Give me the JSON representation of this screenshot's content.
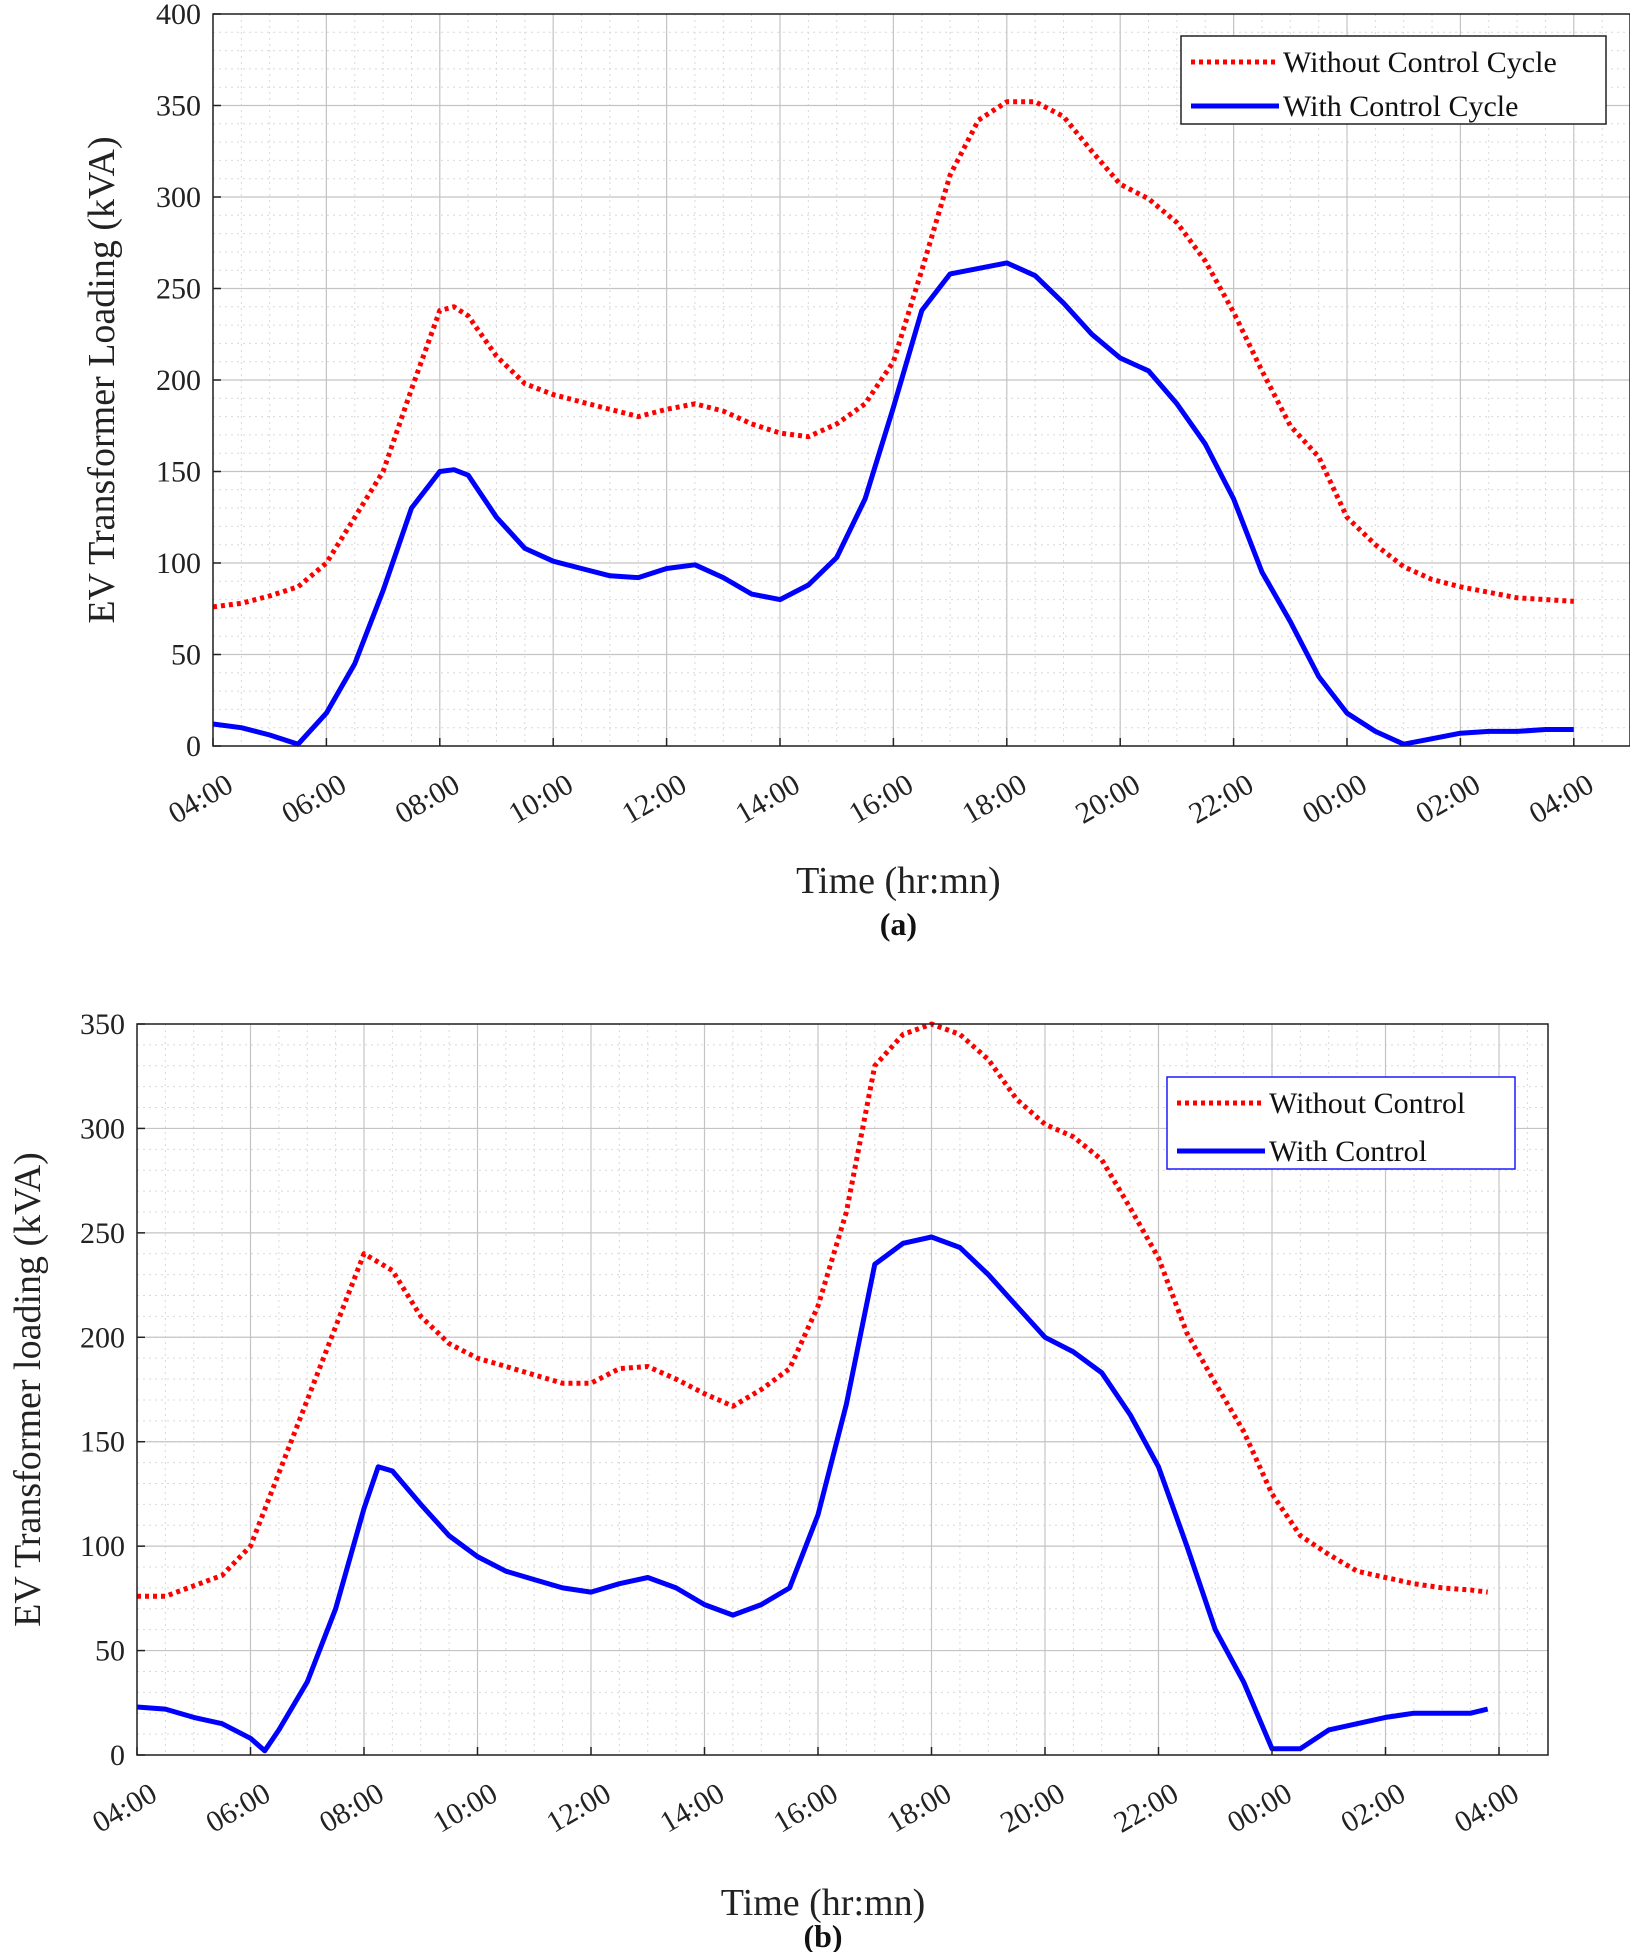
{
  "chart_data": [
    {
      "type": "line",
      "caption": "(a)",
      "xlabel": "Time (hr:mn)",
      "ylabel": "EV Transformer Loading (kVA)",
      "xlim": [
        0,
        24
      ],
      "ylim": [
        0,
        400
      ],
      "y_ticks": [
        0,
        50,
        100,
        150,
        200,
        250,
        300,
        350,
        400
      ],
      "x_tick_labels": [
        "04:00",
        "06:00",
        "08:00",
        "10:00",
        "12:00",
        "14:00",
        "16:00",
        "18:00",
        "20:00",
        "22:00",
        "00:00",
        "02:00",
        "04:00"
      ],
      "grid": true,
      "legend_position": "top-right",
      "series": [
        {
          "name": "Without Control Cycle",
          "color": "#ff0000",
          "style": "dotted",
          "x": [
            0,
            0.5,
            1,
            1.5,
            2,
            2.5,
            3,
            3.5,
            4,
            4.25,
            4.5,
            5,
            5.5,
            6,
            6.5,
            7,
            7.5,
            8,
            8.5,
            9,
            9.5,
            10,
            10.5,
            11,
            11.5,
            12,
            12.5,
            13,
            13.5,
            14,
            14.5,
            15,
            15.5,
            16,
            16.5,
            17,
            17.5,
            18,
            18.5,
            19,
            19.5,
            20,
            20.5,
            21,
            21.5,
            22,
            22.5,
            23,
            23.5,
            24
          ],
          "values": [
            76,
            78,
            82,
            87,
            100,
            125,
            150,
            195,
            238,
            240,
            235,
            213,
            198,
            192,
            188,
            184,
            180,
            184,
            187,
            183,
            176,
            171,
            169,
            176,
            187,
            210,
            260,
            312,
            342,
            352,
            352,
            344,
            325,
            307,
            299,
            286,
            265,
            237,
            205,
            175,
            158,
            125,
            110,
            98,
            91,
            87,
            84,
            81,
            80,
            79
          ]
        },
        {
          "name": "With Control Cycle",
          "color": "#0000ff",
          "style": "solid",
          "x": [
            0,
            0.5,
            1,
            1.5,
            2,
            2.5,
            3,
            3.5,
            4,
            4.25,
            4.5,
            5,
            5.5,
            6,
            6.5,
            7,
            7.5,
            8,
            8.5,
            9,
            9.5,
            10,
            10.5,
            11,
            11.5,
            12,
            12.5,
            13,
            13.5,
            14,
            14.5,
            15,
            15.5,
            16,
            16.5,
            17,
            17.5,
            18,
            18.5,
            19,
            19.5,
            20,
            20.5,
            21,
            21.5,
            22,
            22.5,
            23,
            23.5,
            24
          ],
          "values": [
            12,
            10,
            6,
            1,
            18,
            45,
            85,
            130,
            150,
            151,
            148,
            125,
            108,
            101,
            97,
            93,
            92,
            97,
            99,
            92,
            83,
            80,
            88,
            103,
            135,
            185,
            238,
            258,
            261,
            264,
            257,
            242,
            225,
            212,
            205,
            187,
            165,
            135,
            95,
            68,
            38,
            18,
            8,
            1,
            4,
            7,
            8,
            8,
            9,
            9
          ]
        }
      ]
    },
    {
      "type": "line",
      "caption": "(b)",
      "xlabel": "Time (hr:mn)",
      "ylabel": "EV Transformer loading  (kVA)",
      "xlim": [
        0,
        24
      ],
      "ylim": [
        0,
        350
      ],
      "y_ticks": [
        0,
        50,
        100,
        150,
        200,
        250,
        300,
        350
      ],
      "x_tick_labels": [
        "04:00",
        "06:00",
        "08:00",
        "10:00",
        "12:00",
        "14:00",
        "16:00",
        "18:00",
        "20:00",
        "22:00",
        "00:00",
        "02:00",
        "04:00"
      ],
      "grid": true,
      "legend_position": "top-right",
      "series": [
        {
          "name": "Without Control",
          "color": "#ff0000",
          "style": "dotted",
          "x": [
            0,
            0.5,
            1,
            1.5,
            2,
            2.5,
            3,
            3.5,
            4,
            4.5,
            5,
            5.5,
            6,
            6.5,
            7,
            7.5,
            8,
            8.5,
            9,
            9.5,
            10,
            10.5,
            11,
            11.5,
            12,
            12.5,
            13,
            13.5,
            14,
            14.5,
            15,
            15.5,
            16,
            16.5,
            17,
            17.5,
            18,
            18.5,
            19,
            19.5,
            20,
            20.5,
            21,
            21.5,
            22,
            22.5,
            23,
            23.5,
            23.8
          ],
          "values": [
            76,
            76,
            81,
            86,
            100,
            135,
            170,
            205,
            240,
            232,
            210,
            197,
            190,
            186,
            182,
            178,
            178,
            185,
            186,
            180,
            173,
            167,
            175,
            185,
            215,
            260,
            330,
            345,
            350,
            345,
            333,
            314,
            302,
            296,
            285,
            262,
            238,
            202,
            178,
            155,
            125,
            105,
            96,
            88,
            85,
            82,
            80,
            79,
            78
          ]
        },
        {
          "name": "With Control",
          "color": "#0000ff",
          "style": "solid",
          "x": [
            0,
            0.5,
            1,
            1.5,
            2,
            2.25,
            2.5,
            3,
            3.5,
            4,
            4.25,
            4.5,
            5,
            5.5,
            6,
            6.5,
            7,
            7.5,
            8,
            8.5,
            9,
            9.5,
            10,
            10.5,
            11,
            11.5,
            12,
            12.5,
            13,
            13.5,
            14,
            14.5,
            15,
            15.5,
            16,
            16.5,
            17,
            17.5,
            18,
            18.5,
            19,
            19.5,
            20,
            20.5,
            21,
            21.5,
            22,
            22.5,
            23,
            23.5,
            23.8
          ],
          "values": [
            23,
            22,
            18,
            15,
            8,
            2,
            12,
            35,
            70,
            118,
            138,
            136,
            120,
            105,
            95,
            88,
            84,
            80,
            78,
            82,
            85,
            80,
            72,
            67,
            72,
            80,
            115,
            168,
            235,
            245,
            248,
            243,
            230,
            215,
            200,
            193,
            183,
            163,
            138,
            100,
            60,
            35,
            3,
            3,
            12,
            15,
            18,
            20,
            20,
            20,
            22
          ]
        }
      ]
    }
  ]
}
